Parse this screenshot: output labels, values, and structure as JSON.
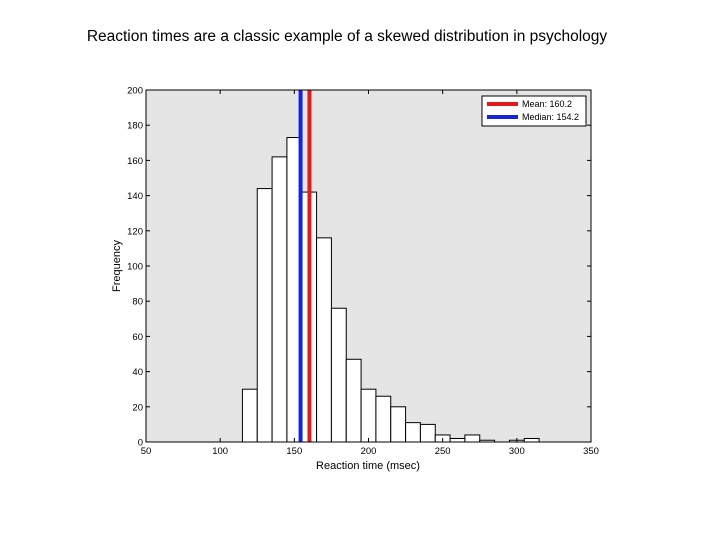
{
  "slide": {
    "title": "Reaction times are a classic example of a skewed distribution in psychology"
  },
  "chart_data": {
    "type": "bar",
    "title": "",
    "xlabel": "Reaction time (msec)",
    "ylabel": "Frequency",
    "xlim": [
      50,
      350
    ],
    "ylim": [
      0,
      200
    ],
    "xticks": [
      50,
      100,
      150,
      200,
      250,
      300,
      350
    ],
    "yticks": [
      0,
      20,
      40,
      60,
      80,
      100,
      120,
      140,
      160,
      180,
      200
    ],
    "bin_width": 10,
    "bins": [
      {
        "x": 120,
        "count": 30
      },
      {
        "x": 130,
        "count": 144
      },
      {
        "x": 140,
        "count": 162
      },
      {
        "x": 150,
        "count": 173
      },
      {
        "x": 160,
        "count": 142
      },
      {
        "x": 170,
        "count": 116
      },
      {
        "x": 180,
        "count": 76
      },
      {
        "x": 190,
        "count": 47
      },
      {
        "x": 200,
        "count": 30
      },
      {
        "x": 210,
        "count": 26
      },
      {
        "x": 220,
        "count": 20
      },
      {
        "x": 230,
        "count": 11
      },
      {
        "x": 240,
        "count": 10
      },
      {
        "x": 250,
        "count": 4
      },
      {
        "x": 260,
        "count": 2
      },
      {
        "x": 270,
        "count": 4
      },
      {
        "x": 280,
        "count": 1
      },
      {
        "x": 290,
        "count": 0
      },
      {
        "x": 300,
        "count": 1
      },
      {
        "x": 310,
        "count": 2
      }
    ],
    "lines": [
      {
        "label": "Mean: 160.2",
        "x": 160.2,
        "color": "#e01b1b"
      },
      {
        "label": "Median: 154.2",
        "x": 154.2,
        "color": "#1424d8"
      }
    ],
    "legend_position": "top-right",
    "plot_background": "#e5e5e5",
    "bar_fill": "#ffffff",
    "grid": false
  }
}
